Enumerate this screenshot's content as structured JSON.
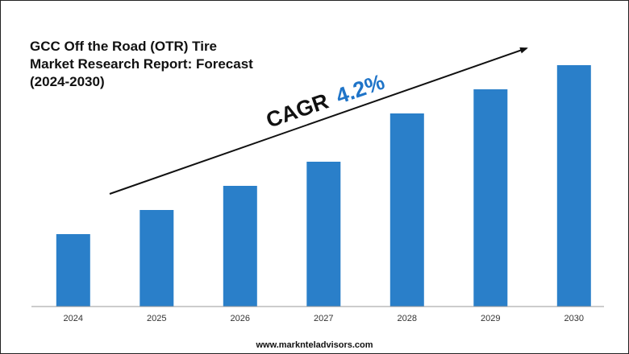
{
  "title_lines": [
    "GCC Off the Road (OTR) Tire",
    "Market Research Report: Forecast",
    "(2024-2030)"
  ],
  "annotation": {
    "label": "CAGR",
    "value": "4.2%"
  },
  "footer": {
    "url": "www.marknteladvisors.com"
  },
  "colors": {
    "bar": "#2a7fc9",
    "cagr_value": "#1f74c8",
    "axis": "#999999",
    "arrow": "#111111"
  },
  "chart_data": {
    "type": "bar",
    "title": "GCC Off the Road (OTR) Tire Market Research Report: Forecast (2024-2030)",
    "categories": [
      "2024",
      "2025",
      "2026",
      "2027",
      "2028",
      "2029",
      "2030"
    ],
    "values": [
      30,
      40,
      50,
      60,
      80,
      90,
      100
    ],
    "value_scale": "relative (no y-axis printed)",
    "ylim": [
      0,
      100
    ],
    "xlabel": "",
    "ylabel": "",
    "grid": false,
    "legend": "none",
    "annotations": [
      "CAGR 4.2%"
    ]
  }
}
